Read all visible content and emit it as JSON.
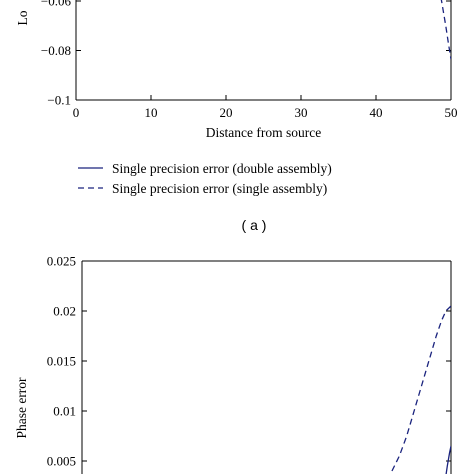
{
  "chart_data": [
    {
      "type": "line",
      "panel_label": "( a )",
      "xlabel": "Distance from source",
      "ylabel": "Lo",
      "xlim": [
        0,
        50
      ],
      "ylim": [
        -0.1,
        -0.05
      ],
      "xticks": [
        0,
        10,
        20,
        30,
        40,
        50
      ],
      "xtick_labels": [
        "0",
        "10",
        "20",
        "30",
        "40",
        "50"
      ],
      "yticks": [
        -0.1,
        -0.08,
        -0.06
      ],
      "ytick_labels": [
        "−0.1",
        "−0.08",
        "−0.06"
      ],
      "grid": false,
      "legend_placement": "below",
      "series": [
        {
          "name": "Single precision error (double assembly)",
          "style": "solid",
          "color": "#1a237e",
          "x": [],
          "y": []
        },
        {
          "name": "Single precision error (single assembly)",
          "style": "dashed",
          "color": "#1a237e",
          "x": [
            48.2,
            48.8,
            49.3,
            49.7,
            50.0
          ],
          "y": [
            -0.0505,
            -0.061,
            -0.07,
            -0.078,
            -0.0835
          ]
        }
      ]
    },
    {
      "type": "line",
      "ylabel": "Phase error",
      "xlim": [
        0,
        50
      ],
      "ylim": [
        0,
        0.025
      ],
      "yticks": [
        0.005,
        0.01,
        0.015,
        0.02,
        0.025
      ],
      "ytick_labels": [
        "0.005",
        "0.01",
        "0.015",
        "0.02",
        "0.025"
      ],
      "grid": false,
      "series": [
        {
          "name": "Single precision error (double assembly)",
          "style": "solid",
          "color": "#1a237e",
          "x": [
            49.2,
            49.5,
            49.8,
            50.0
          ],
          "y": [
            0.003,
            0.0045,
            0.0058,
            0.0065
          ]
        },
        {
          "name": "Single precision error (single assembly)",
          "style": "dashed",
          "color": "#1a237e",
          "x": [
            42.0,
            43.0,
            44.0,
            45.0,
            46.0,
            47.0,
            48.0,
            48.7,
            49.3,
            50.0
          ],
          "y": [
            0.004,
            0.0055,
            0.0075,
            0.01,
            0.0125,
            0.015,
            0.0175,
            0.019,
            0.02,
            0.0205
          ]
        }
      ]
    }
  ]
}
